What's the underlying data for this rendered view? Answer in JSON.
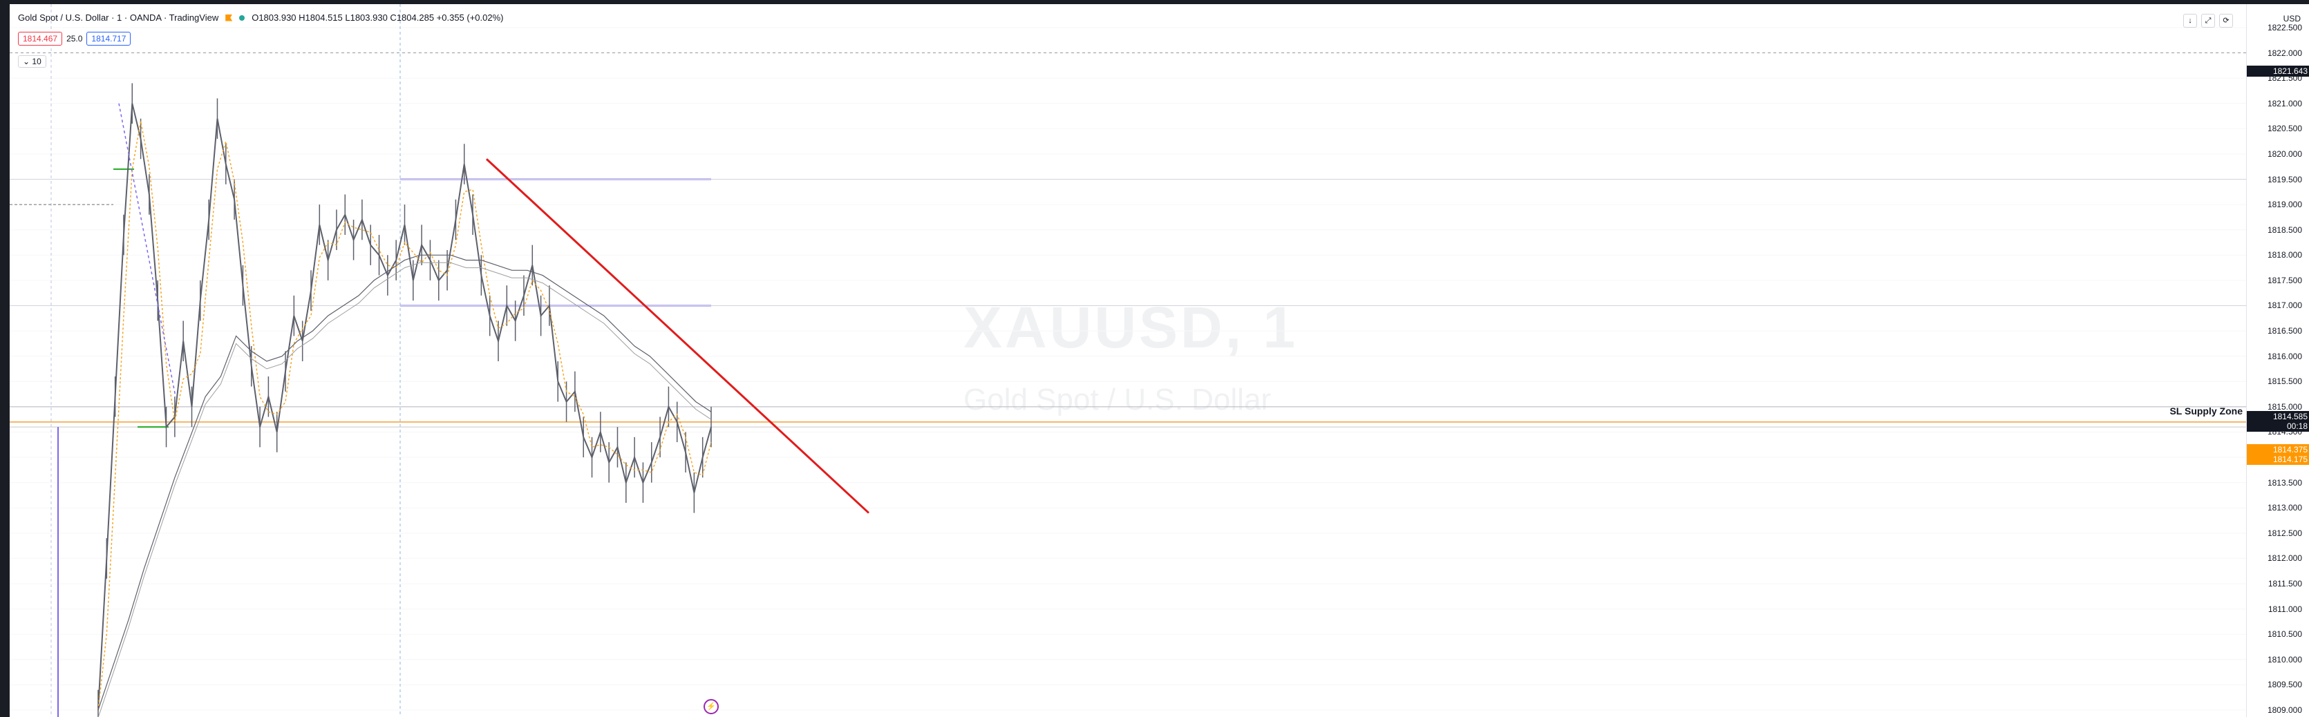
{
  "header": {
    "symbol_title": "Gold Spot / U.S. Dollar · 1 · OANDA · TradingView",
    "ohlc": "O1803.930  H1804.515  L1803.930  C1804.285  +0.355 (+0.02%)",
    "sell_price": "1814.467",
    "spread": "25.0",
    "buy_price": "1814.717",
    "collapse_label": "10"
  },
  "watermark": {
    "ticker": "XAUUSD, 1",
    "name": "Gold Spot / U.S. Dollar"
  },
  "axis": {
    "currency": "USD",
    "price_label_main": "1821.643",
    "price_label_last": "1814.585",
    "price_label_timer": "00:18",
    "price_label_ask": "1814.375",
    "price_label_bid": "1814.175"
  },
  "annotations": {
    "sl_supply_zone": "SL Supply Zone"
  },
  "colors": {
    "trendline": "#e21b1b",
    "hline_blue": "#7b68ee",
    "hline_orange": "#f5a623",
    "hline_green": "#22aa22",
    "candles": "#5d606b",
    "ma_fast": "#f5a623",
    "ma_slow": "#9e9e9e",
    "price_main_bg": "#131722",
    "price_last_bg": "#131722",
    "price_ask_bg": "#ff9800"
  },
  "chart_data": {
    "type": "line",
    "title": "",
    "xlabel": "",
    "ylabel": "",
    "ylim": [
      1809.0,
      1822.8
    ],
    "y_ticks": [
      1822.5,
      1822.0,
      1821.5,
      1821.0,
      1820.5,
      1820.0,
      1819.5,
      1819.0,
      1818.5,
      1818.0,
      1817.5,
      1817.0,
      1816.5,
      1816.0,
      1815.5,
      1815.0,
      1814.5,
      1814.0,
      1813.5,
      1813.0,
      1812.5,
      1812.0,
      1811.5,
      1811.0,
      1810.5,
      1810.0,
      1809.5,
      1809.0
    ],
    "y_tick_labels": [
      "1822.500",
      "1822.000",
      "1821.500",
      "1821.000",
      "1820.500",
      "1820.000",
      "1819.500",
      "1819.000",
      "1818.500",
      "1818.000",
      "1817.500",
      "1817.000",
      "1816.500",
      "1816.000",
      "1815.500",
      "1815.000",
      "1814.500",
      "1814.000",
      "1813.500",
      "1813.000",
      "1812.500",
      "1812.000",
      "1811.500",
      "1811.000",
      "1810.500",
      "1810.000",
      "1809.500",
      "1809.000"
    ],
    "series": [
      {
        "values": [
          1809.0,
          1812.0,
          1815.2,
          1818.4,
          1821.0,
          1820.3,
          1819.2,
          1817.1,
          1814.6,
          1814.8,
          1816.3,
          1815.0,
          1817.1,
          1818.7,
          1820.7,
          1819.8,
          1819.1,
          1817.4,
          1815.8,
          1814.6,
          1815.2,
          1814.5,
          1815.7,
          1816.8,
          1816.3,
          1817.3,
          1818.6,
          1817.9,
          1818.5,
          1818.8,
          1818.3,
          1818.7,
          1818.2,
          1818.0,
          1817.6,
          1817.9,
          1818.6,
          1817.5,
          1818.2,
          1817.9,
          1817.5,
          1817.7,
          1818.7,
          1819.8,
          1818.8,
          1817.6,
          1816.8,
          1816.3,
          1817.0,
          1816.7,
          1817.2,
          1817.8,
          1816.8,
          1817.0,
          1815.5,
          1815.1,
          1815.3,
          1814.4,
          1814.0,
          1814.5,
          1813.9,
          1814.2,
          1813.5,
          1814.0,
          1813.5,
          1813.9,
          1814.4,
          1815.0,
          1814.7,
          1814.1,
          1813.3,
          1814.0,
          1814.6
        ]
      },
      {
        "values": [
          1809.0,
          1809.9,
          1810.8,
          1811.8,
          1812.7,
          1813.6,
          1814.4,
          1815.2,
          1815.6,
          1816.4,
          1816.1,
          1815.9,
          1816.0,
          1816.3,
          1816.5,
          1816.8,
          1817.0,
          1817.2,
          1817.5,
          1817.7,
          1817.9,
          1818.0,
          1818.0,
          1818.0,
          1817.9,
          1817.9,
          1817.8,
          1817.7,
          1817.7,
          1817.6,
          1817.4,
          1817.2,
          1817.0,
          1816.8,
          1816.5,
          1816.2,
          1816.0,
          1815.7,
          1815.4,
          1815.1,
          1814.9
        ]
      }
    ],
    "trendline": {
      "from": 1819.9,
      "to": 1812.9
    },
    "horizontal_levels": [
      1822.0,
      1819.5,
      1817.0,
      1815.0,
      1814.7,
      1814.6,
      1819.0
    ]
  }
}
